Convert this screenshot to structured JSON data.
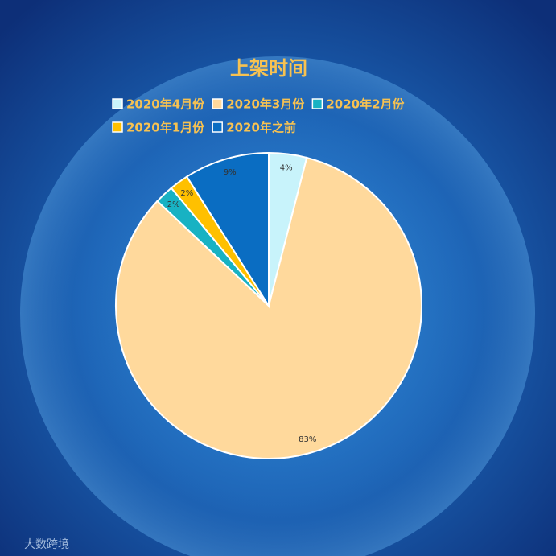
{
  "chart_data": {
    "type": "pie",
    "title": "上架时间",
    "categories": [
      "2020年4月份",
      "2020年3月份",
      "2020年2月份",
      "2020年1月份",
      "2020年之前"
    ],
    "values": [
      4,
      83,
      2,
      2,
      9
    ],
    "value_labels": [
      "4%",
      "83%",
      "2%",
      "2%",
      "9%"
    ],
    "colors": [
      "#c8f3fb",
      "#ffd99c",
      "#18b2c3",
      "#ffc000",
      "#0a6dc2"
    ],
    "legend": "top"
  },
  "watermark": "大数跨境"
}
